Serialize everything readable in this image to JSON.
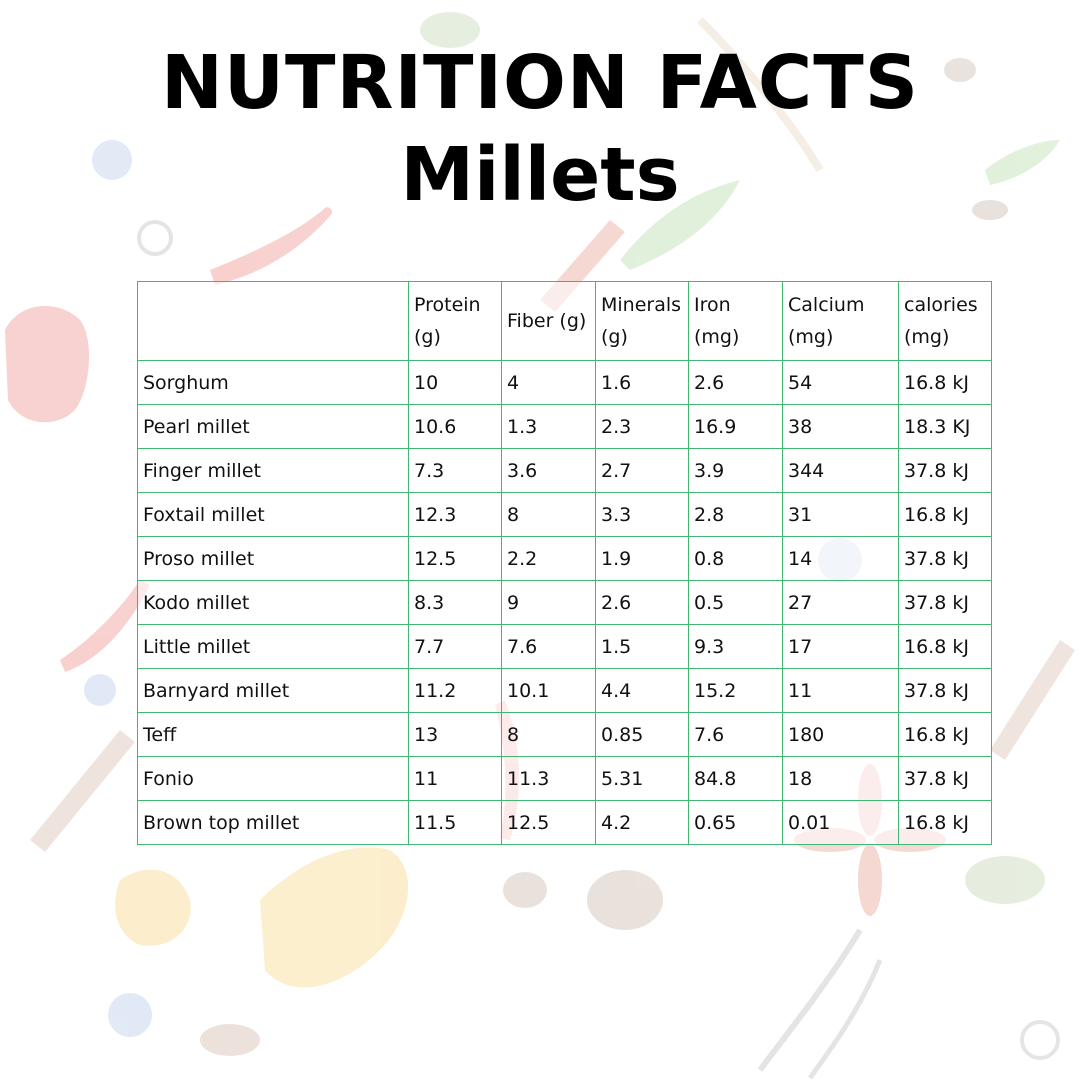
{
  "title": "NUTRITION FACTS",
  "subtitle": "Millets",
  "table": {
    "headers": [
      "",
      "Protein (g)",
      "Fiber (g)",
      "Minerals (g)",
      "Iron (mg)",
      "Calcium (mg)",
      "calories (mg)"
    ],
    "rows": [
      [
        "Sorghum",
        "10",
        "4",
        "1.6",
        "2.6",
        "54",
        "16.8 kJ"
      ],
      [
        "Pearl millet",
        "10.6",
        "1.3",
        "2.3",
        "16.9",
        "38",
        "18.3 KJ"
      ],
      [
        "Finger millet",
        "7.3",
        "3.6",
        "2.7",
        "3.9",
        "344",
        "37.8 kJ"
      ],
      [
        "Foxtail millet",
        "12.3",
        "8",
        "3.3",
        "2.8",
        "31",
        "16.8 kJ"
      ],
      [
        "Proso millet",
        "12.5",
        "2.2",
        "1.9",
        "0.8",
        "14",
        "37.8 kJ"
      ],
      [
        "Kodo millet",
        "8.3",
        "9",
        "2.6",
        "0.5",
        "27",
        "37.8 kJ"
      ],
      [
        "Little millet",
        "7.7",
        "7.6",
        "1.5",
        "9.3",
        "17",
        "16.8 kJ"
      ],
      [
        "Barnyard millet",
        "11.2",
        "10.1",
        "4.4",
        "15.2",
        "11",
        "37.8 kJ"
      ],
      [
        "Teff",
        "13",
        "8",
        "0.85",
        "7.6",
        "180",
        "16.8 kJ"
      ],
      [
        "Fonio",
        "11",
        "11.3",
        "5.31",
        "84.8",
        "18",
        "37.8 kJ"
      ],
      [
        "Brown top millet",
        "11.5",
        "12.5",
        "4.2",
        "0.65",
        "0.01",
        "16.8 kJ"
      ]
    ]
  },
  "colors": {
    "border": "#3fb873",
    "text": "#111111",
    "title": "#000000"
  }
}
